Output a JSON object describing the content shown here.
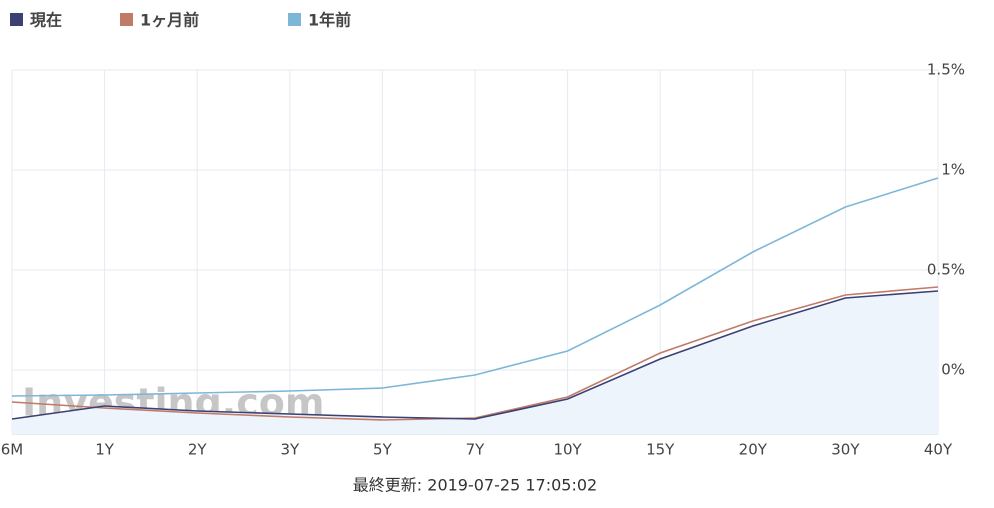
{
  "chart_data": {
    "type": "line",
    "categories": [
      "6M",
      "1Y",
      "2Y",
      "3Y",
      "5Y",
      "7Y",
      "10Y",
      "15Y",
      "20Y",
      "30Y",
      "40Y"
    ],
    "series": [
      {
        "name": "現在",
        "color": "#3b4173",
        "values": [
          -0.245,
          -0.18,
          -0.205,
          -0.22,
          -0.235,
          -0.245,
          -0.145,
          0.055,
          0.22,
          0.36,
          0.395
        ]
      },
      {
        "name": "1ヶ月前",
        "color": "#c07a68",
        "values": [
          -0.16,
          -0.19,
          -0.215,
          -0.235,
          -0.25,
          -0.24,
          -0.135,
          0.085,
          0.245,
          0.375,
          0.415
        ]
      },
      {
        "name": "1年前",
        "color": "#7eb6d8",
        "values": [
          -0.13,
          -0.125,
          -0.115,
          -0.105,
          -0.09,
          -0.025,
          0.095,
          0.325,
          0.59,
          0.815,
          0.96
        ]
      }
    ],
    "ylim": [
      -0.32,
      1.5
    ],
    "yticks": [
      {
        "value": 0,
        "label": "0%"
      },
      {
        "value": 0.5,
        "label": "0.5%"
      },
      {
        "value": 1,
        "label": "1%"
      },
      {
        "value": 1.5,
        "label": "1.5%"
      }
    ],
    "grid": true,
    "area_fill": "#eef4fc",
    "watermark": "Investing.com",
    "footer": "最終更新: 2019-07-25 17:05:02"
  }
}
